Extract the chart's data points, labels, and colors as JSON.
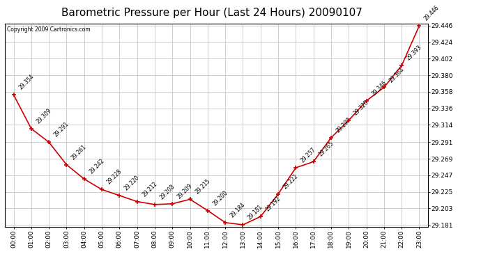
{
  "title": "Barometric Pressure per Hour (Last 24 Hours) 20090107",
  "copyright": "Copyright 2009 Cartronics.com",
  "hours": [
    "00:00",
    "01:00",
    "02:00",
    "03:00",
    "04:00",
    "05:00",
    "06:00",
    "07:00",
    "08:00",
    "09:00",
    "10:00",
    "11:00",
    "12:00",
    "13:00",
    "14:00",
    "15:00",
    "16:00",
    "17:00",
    "18:00",
    "19:00",
    "20:00",
    "21:00",
    "22:00",
    "23:00"
  ],
  "values": [
    29.354,
    29.309,
    29.291,
    29.261,
    29.242,
    29.228,
    29.22,
    29.212,
    29.208,
    29.209,
    29.215,
    29.2,
    29.184,
    29.181,
    29.192,
    29.222,
    29.257,
    29.265,
    29.297,
    29.32,
    29.346,
    29.364,
    29.393,
    29.446
  ],
  "line_color": "#cc0000",
  "marker_color": "#cc0000",
  "bg_color": "#ffffff",
  "plot_bg_color": "#ffffff",
  "grid_color": "#c8c8c8",
  "title_fontsize": 11,
  "ylim_min": 29.181,
  "ylim_max": 29.446,
  "yticks": [
    29.181,
    29.203,
    29.225,
    29.247,
    29.269,
    29.291,
    29.314,
    29.336,
    29.358,
    29.38,
    29.402,
    29.424,
    29.446
  ]
}
